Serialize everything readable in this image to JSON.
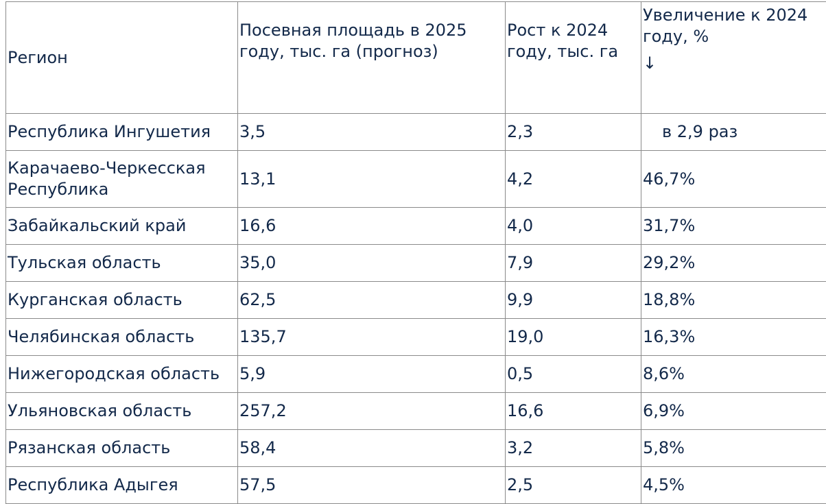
{
  "table": {
    "headers": {
      "region": "Регион",
      "area": "Посевная площадь в 2025 году, тыс. га (прогноз)",
      "growth": "Рост к 2024 году, тыс. га",
      "increase": "Увеличение к 2024 году, %",
      "sort_arrow": "↓"
    },
    "rows": [
      {
        "region": "Республика Ингушетия",
        "area": "3,5",
        "growth": "2,3",
        "increase": "в 2,9 раз"
      },
      {
        "region": "Карачаево-Черкесская Республика",
        "area": "13,1",
        "growth": "4,2",
        "increase": "46,7%"
      },
      {
        "region": "Забайкальский край",
        "area": "16,6",
        "growth": "4,0",
        "increase": "31,7%"
      },
      {
        "region": "Тульская область",
        "area": "35,0",
        "growth": "7,9",
        "increase": "29,2%"
      },
      {
        "region": "Курганская область",
        "area": "62,5",
        "growth": "9,9",
        "increase": "18,8%"
      },
      {
        "region": "Челябинская область",
        "area": "135,7",
        "growth": "19,0",
        "increase": "16,3%"
      },
      {
        "region": "Нижегородская область",
        "area": "5,9",
        "growth": "0,5",
        "increase": "8,6%"
      },
      {
        "region": "Ульяновская область",
        "area": "257,2",
        "growth": "16,6",
        "increase": "6,9%"
      },
      {
        "region": "Рязанская область",
        "area": "58,4",
        "growth": "3,2",
        "increase": "5,8%"
      },
      {
        "region": "Республика Адыгея",
        "area": "57,5",
        "growth": "2,5",
        "increase": "4,5%"
      }
    ]
  }
}
